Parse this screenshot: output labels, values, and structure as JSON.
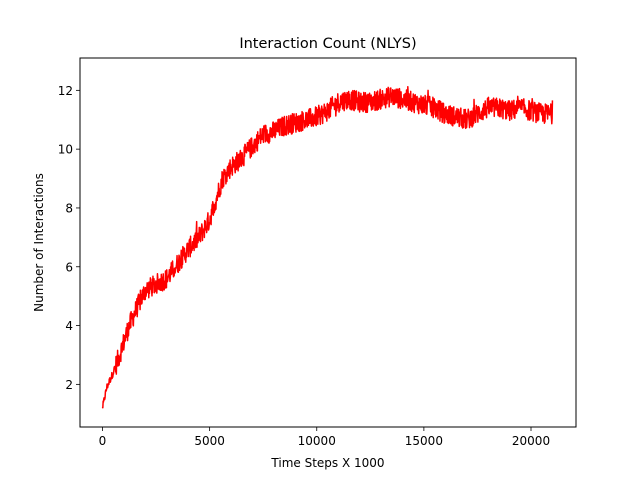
{
  "chart_data": {
    "type": "line",
    "title": "Interaction Count (NLYS)",
    "xlabel": "Time Steps X 1000",
    "ylabel": "Number of Interactions",
    "xlim": [
      -1050,
      22100
    ],
    "ylim": [
      0.55,
      13.1
    ],
    "xticks": [
      0,
      5000,
      10000,
      15000,
      20000
    ],
    "yticks": [
      2,
      4,
      6,
      8,
      10,
      12
    ],
    "grid": false,
    "series": [
      {
        "color": "#ff0000",
        "noise_amplitude": 0.35,
        "x": [
          0,
          200,
          500,
          800,
          1200,
          1600,
          2000,
          2500,
          3000,
          3500,
          4000,
          4500,
          5000,
          5300,
          5600,
          6000,
          6500,
          7000,
          7500,
          8000,
          8500,
          9000,
          9500,
          10000,
          10500,
          11000,
          11500,
          12000,
          12500,
          13000,
          13500,
          14000,
          14500,
          15000,
          15500,
          16000,
          16500,
          17000,
          17500,
          18000,
          18500,
          19000,
          19500,
          20000,
          20500,
          21000
        ],
        "y": [
          1.2,
          1.9,
          2.4,
          3.0,
          3.9,
          4.6,
          5.2,
          5.4,
          5.6,
          6.1,
          6.6,
          7.0,
          7.6,
          8.3,
          9.0,
          9.4,
          9.7,
          10.1,
          10.5,
          10.6,
          10.8,
          10.9,
          11.0,
          11.1,
          11.3,
          11.6,
          11.7,
          11.6,
          11.6,
          11.7,
          11.8,
          11.7,
          11.6,
          11.5,
          11.4,
          11.2,
          11.1,
          11.0,
          11.2,
          11.4,
          11.4,
          11.3,
          11.4,
          11.3,
          11.2,
          11.2
        ]
      }
    ]
  }
}
